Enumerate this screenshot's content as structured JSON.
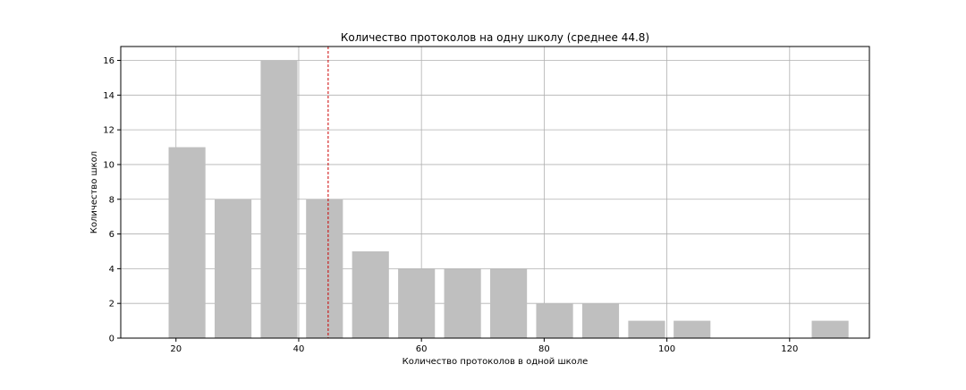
{
  "chart_data": {
    "type": "bar",
    "title": "Количество протоколов на одну школу (среднее 44.8)",
    "xlabel": "Количество протоколов в одной школе",
    "ylabel": "Количество школ",
    "xlim": [
      11,
      133
    ],
    "ylim": [
      0,
      16.8
    ],
    "xticks": [
      20,
      40,
      60,
      80,
      100,
      120
    ],
    "yticks": [
      0,
      2,
      4,
      6,
      8,
      10,
      12,
      14,
      16
    ],
    "bin_width": 7.5,
    "bar_fill_fraction": 0.8,
    "x": [
      21.8,
      29.3,
      36.8,
      44.2,
      51.7,
      59.2,
      66.7,
      74.2,
      81.7,
      89.2,
      96.7,
      104.1,
      126.6
    ],
    "values": [
      11,
      8,
      16,
      8,
      5,
      4,
      4,
      4,
      2,
      2,
      1,
      1,
      1
    ],
    "bar_color": "#bfbfbf",
    "mean": 44.8,
    "mean_line_color": "#cc0000",
    "grid": true
  }
}
